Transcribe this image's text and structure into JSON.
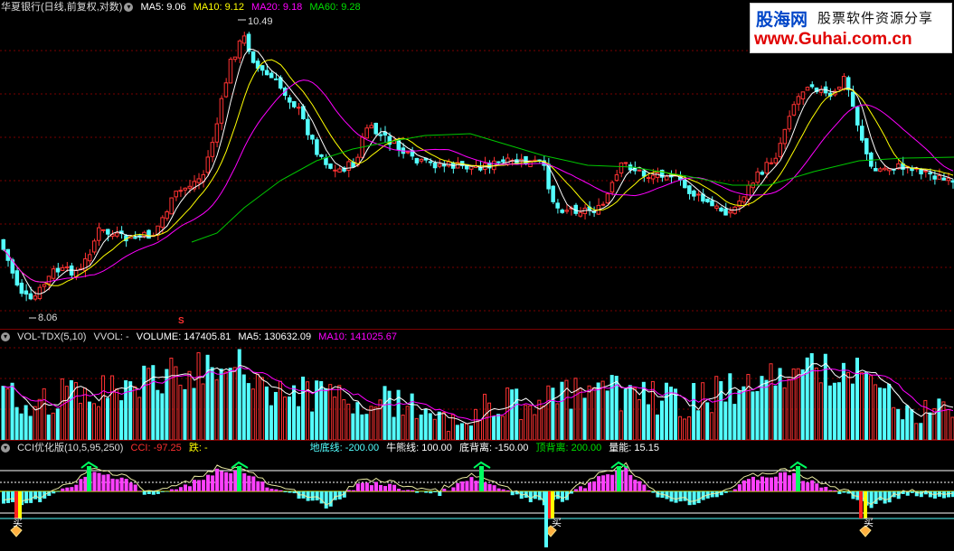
{
  "price_header": {
    "title": "华夏银行(日线,前复权,对数)",
    "ma5": "MA5: 9.06",
    "ma10": "MA10: 9.12",
    "ma20": "MA20: 9.18",
    "ma60": "MA60: 9.28",
    "high_label": "10.49",
    "low_label": "8.06",
    "signal_mark": "S"
  },
  "vol_header": {
    "name": "VOL-TDX(5,10)",
    "vvol": "VVOL: -",
    "volume": "VOLUME: 147405.81",
    "ma5": "MA5: 130632.09",
    "ma10": "MA10: 141025.67"
  },
  "cci_header": {
    "name": "CCI优化版(10,5,95,250)",
    "cci": "CCI: -97.25",
    "fall": "跌: -",
    "floor": "地底线: -200.00",
    "bull": "牛熊线: 100.00",
    "bottom_div": "底背离: -150.00",
    "top_div": "顶背离: 200.00",
    "power": "量能: 15.15"
  },
  "buy_labels": [
    "买",
    "买",
    "买"
  ],
  "logo": {
    "cn_name": "股海网",
    "slogan": "股票软件资源分享",
    "url": "www.Guhai.com.cn"
  },
  "colors": {
    "up": "#ff3232",
    "down": "#54ffff",
    "ma5": "#ffffff",
    "ma10": "#ffff00",
    "ma20": "#ff00ff",
    "ma60": "#00c800",
    "grid": "#7a0000"
  },
  "chart_data": {
    "type": "candlestick",
    "high_marked": 10.49,
    "low_marked": 8.06,
    "last_close": 9.06
  }
}
